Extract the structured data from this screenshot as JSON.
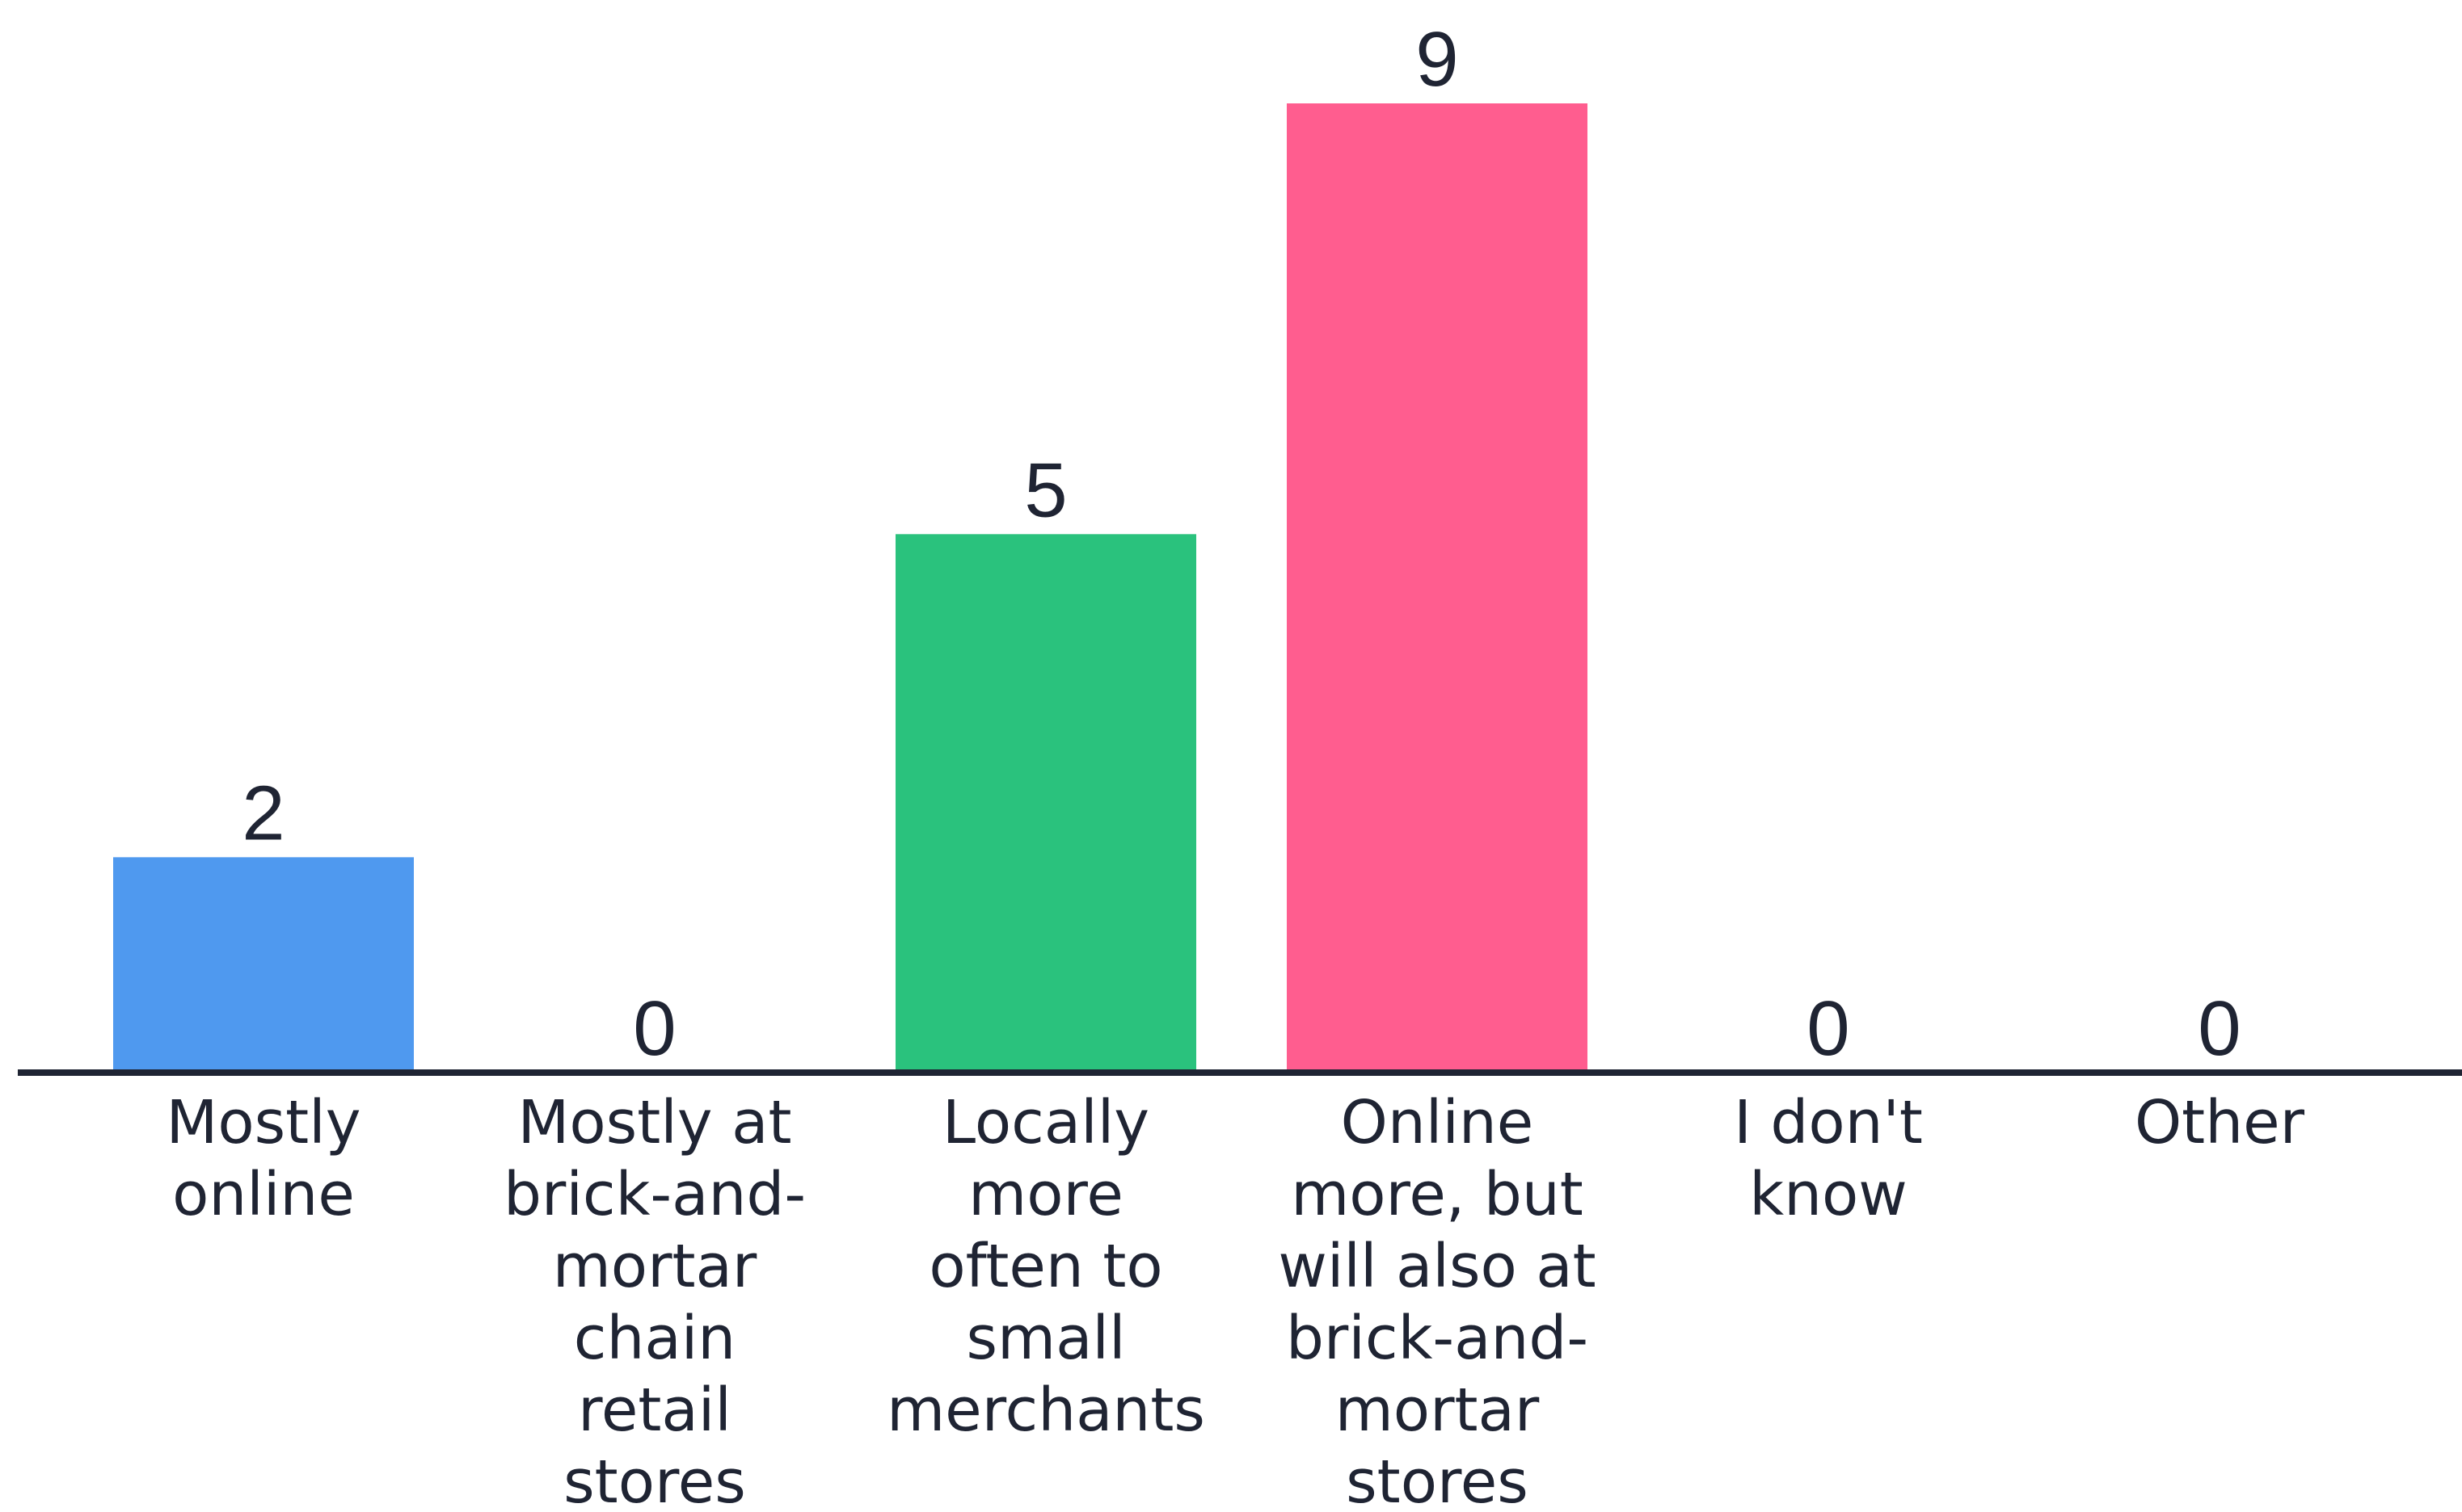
{
  "chart_data": {
    "type": "bar",
    "categories": [
      "Mostly online",
      "Mostly at brick-and-mortar chain retail stores",
      "Locally more often to small merchants",
      "Online more, but will also at brick-and-mortar stores",
      "I don't know",
      "Other"
    ],
    "category_label_lines": [
      [
        "Mostly",
        "online"
      ],
      [
        "Mostly at",
        "brick-and-",
        "mortar",
        "chain",
        "retail",
        "stores"
      ],
      [
        "Locally",
        "more",
        "often to",
        "small",
        "merchants"
      ],
      [
        "Online",
        "more, but",
        "will also at",
        "brick-and-",
        "mortar",
        "stores"
      ],
      [
        "I don't",
        "know"
      ],
      [
        "Other"
      ]
    ],
    "values": [
      2,
      0,
      5,
      9,
      0,
      0
    ],
    "data_labels": [
      "2",
      "0",
      "5",
      "9",
      "0",
      "0"
    ],
    "colors": [
      "#4f99ef",
      "#4f99ef",
      "#2ac27d",
      "#ff5d8f",
      "#4f99ef",
      "#4f99ef"
    ],
    "axis_color": "#1f2433",
    "title": "",
    "xlabel": "",
    "ylabel": "",
    "ylim": [
      0,
      9
    ],
    "grid": false,
    "legend": "none"
  }
}
